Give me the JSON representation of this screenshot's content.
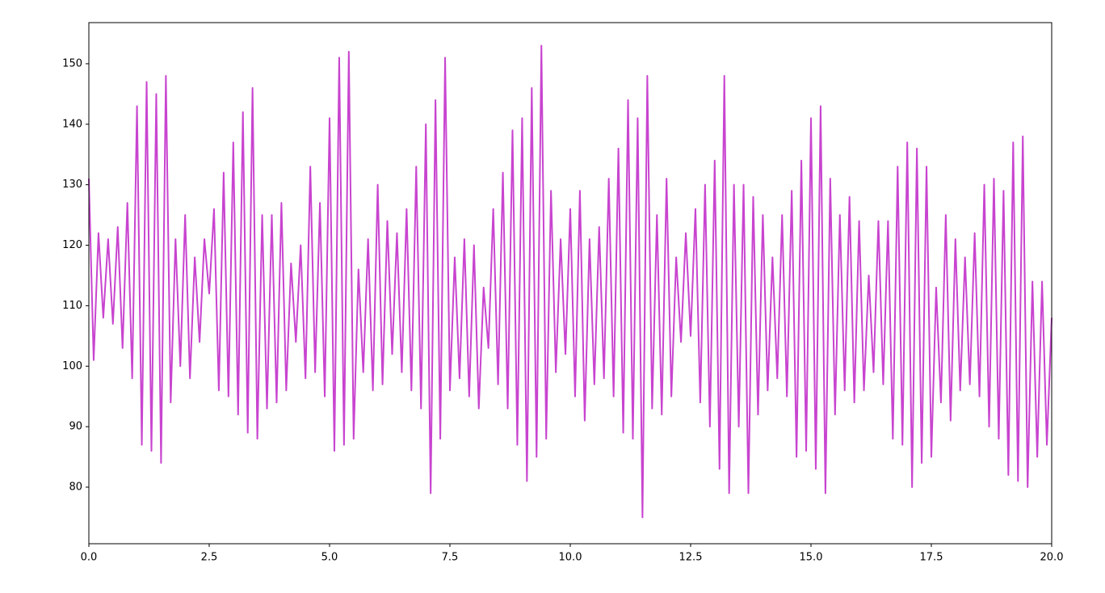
{
  "chart_data": {
    "type": "line",
    "x": [
      0.0,
      0.1,
      0.2,
      0.3,
      0.4,
      0.5,
      0.6,
      0.7,
      0.8,
      0.9,
      1.0,
      1.1,
      1.2,
      1.3,
      1.4,
      1.5,
      1.6,
      1.7,
      1.8,
      1.9,
      2.0,
      2.1,
      2.2,
      2.3,
      2.4,
      2.5,
      2.6,
      2.7,
      2.8,
      2.9,
      3.0,
      3.1,
      3.2,
      3.3,
      3.4,
      3.5,
      3.6,
      3.7,
      3.8,
      3.9,
      4.0,
      4.1,
      4.2,
      4.3,
      4.4,
      4.5,
      4.6,
      4.7,
      4.8,
      4.9,
      5.0,
      5.1,
      5.2,
      5.3,
      5.4,
      5.5,
      5.6,
      5.7,
      5.8,
      5.9,
      6.0,
      6.1,
      6.2,
      6.3,
      6.4,
      6.5,
      6.6,
      6.7,
      6.8,
      6.9,
      7.0,
      7.1,
      7.2,
      7.3,
      7.4,
      7.5,
      7.6,
      7.7,
      7.8,
      7.9,
      8.0,
      8.1,
      8.2,
      8.3,
      8.4,
      8.5,
      8.6,
      8.7,
      8.8,
      8.9,
      9.0,
      9.1,
      9.2,
      9.3,
      9.4,
      9.5,
      9.6,
      9.7,
      9.8,
      9.9,
      10.0,
      10.1,
      10.2,
      10.3,
      10.4,
      10.5,
      10.6,
      10.7,
      10.8,
      10.9,
      11.0,
      11.1,
      11.2,
      11.3,
      11.4,
      11.5,
      11.6,
      11.7,
      11.8,
      11.9,
      12.0,
      12.1,
      12.2,
      12.3,
      12.4,
      12.5,
      12.6,
      12.7,
      12.8,
      12.9,
      13.0,
      13.1,
      13.2,
      13.3,
      13.4,
      13.5,
      13.6,
      13.7,
      13.8,
      13.9,
      14.0,
      14.1,
      14.2,
      14.3,
      14.4,
      14.5,
      14.6,
      14.7,
      14.8,
      14.9,
      15.0,
      15.1,
      15.2,
      15.3,
      15.4,
      15.5,
      15.6,
      15.7,
      15.8,
      15.9,
      16.0,
      16.1,
      16.2,
      16.3,
      16.4,
      16.5,
      16.6,
      16.7,
      16.8,
      16.9,
      17.0,
      17.1,
      17.2,
      17.3,
      17.4,
      17.5,
      17.6,
      17.7,
      17.8,
      17.9,
      18.0,
      18.1,
      18.2,
      18.3,
      18.4,
      18.5,
      18.6,
      18.7,
      18.8,
      18.9,
      19.0,
      19.1,
      19.2,
      19.3,
      19.4,
      19.5,
      19.6,
      19.7,
      19.8,
      19.9,
      20.0
    ],
    "series": [
      {
        "color": "#c844cf",
        "values": [
          131,
          101,
          122,
          108,
          121,
          107,
          123,
          103,
          127,
          98,
          143,
          87,
          147,
          86,
          145,
          84,
          148,
          94,
          121,
          100,
          125,
          98,
          118,
          104,
          121,
          112,
          126,
          96,
          132,
          95,
          137,
          92,
          142,
          89,
          146,
          88,
          125,
          93,
          125,
          94,
          127,
          96,
          117,
          104,
          120,
          98,
          133,
          99,
          127,
          95,
          141,
          86,
          151,
          87,
          152,
          88,
          116,
          99,
          121,
          96,
          130,
          97,
          124,
          102,
          122,
          99,
          126,
          96,
          133,
          93,
          140,
          79,
          144,
          88,
          151,
          96,
          118,
          98,
          121,
          95,
          120,
          93,
          113,
          103,
          126,
          97,
          132,
          93,
          139,
          87,
          141,
          81,
          146,
          85,
          153,
          88,
          129,
          99,
          121,
          102,
          126,
          95,
          129,
          91,
          121,
          97,
          123,
          98,
          131,
          95,
          136,
          89,
          144,
          88,
          141,
          75,
          148,
          93,
          125,
          92,
          131,
          95,
          118,
          104,
          122,
          105,
          126,
          94,
          130,
          90,
          134,
          83,
          148,
          79,
          130,
          90,
          130,
          79,
          128,
          92,
          125,
          96,
          118,
          98,
          125,
          95,
          129,
          85,
          134,
          86,
          141,
          83,
          143,
          79,
          131,
          92,
          125,
          96,
          128,
          94,
          124,
          96,
          115,
          99,
          124,
          97,
          124,
          88,
          133,
          87,
          137,
          80,
          136,
          84,
          133,
          85,
          113,
          94,
          125,
          91,
          121,
          96,
          118,
          97,
          122,
          95,
          130,
          90,
          131,
          88,
          129,
          82,
          137,
          81,
          138,
          80,
          114,
          85,
          114,
          87,
          108
        ]
      }
    ],
    "xlim": [
      0,
      20
    ],
    "ylim": [
      70.65,
      156.8
    ],
    "xticks": [
      {
        "value": 0,
        "label": "0.0"
      },
      2.5,
      {
        "value": 5,
        "label": "5.0"
      },
      7.5,
      {
        "value": 10,
        "label": "10.0"
      },
      12.5,
      {
        "value": 15,
        "label": "15.0"
      },
      17.5,
      {
        "value": 20,
        "label": "20.0"
      }
    ],
    "yticks": [
      80,
      90,
      100,
      110,
      120,
      130,
      140,
      150
    ]
  }
}
